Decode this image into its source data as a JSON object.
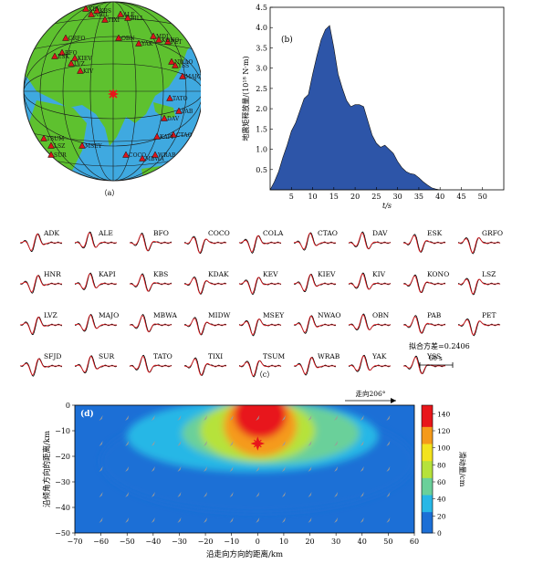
{
  "panel_a": {
    "label": "（a）",
    "stations": [
      "NRIL",
      "TIXI",
      "BILL",
      "YAK",
      "KBS",
      "ALE",
      "OBN",
      "GRFO",
      "BFO",
      "ESK",
      "KIEV",
      "KIV",
      "MDJ",
      "PET",
      "NWAO",
      "YSS",
      "TATO",
      "MAJO",
      "PAB",
      "KONO",
      "DAV",
      "CTAO",
      "KAPI",
      "TSUM",
      "LSZ",
      "MSEY",
      "COCO",
      "MBWA",
      "WRAB",
      "SUR",
      "LVZ",
      "KEV"
    ]
  },
  "panel_b": {
    "label": "(b)",
    "chart_data": {
      "type": "area",
      "xlabel": "t/s",
      "ylabel": "地震矩释放量/(10¹⁸ N·m)",
      "xlim": [
        0,
        55
      ],
      "ylim": [
        0,
        4.5
      ],
      "x_ticks": [
        5,
        10,
        15,
        20,
        25,
        30,
        35,
        40,
        45,
        50
      ],
      "y_ticks": [
        0.5,
        1.0,
        1.5,
        2.0,
        2.5,
        3.0,
        3.5,
        4.0,
        4.5
      ],
      "x_tick_labels": [
        "5",
        "10",
        "15",
        "20",
        "25",
        "30",
        "35",
        "40",
        "45",
        "50"
      ],
      "y_tick_labels": [
        "0.5",
        "1.0",
        "1.5",
        "2.0",
        "2.5",
        "3.0",
        "3.5",
        "4.0",
        "4.5"
      ],
      "color": "#2d55a8",
      "x": [
        0,
        1,
        2,
        3,
        4,
        5,
        6,
        7,
        8,
        9,
        10,
        11,
        12,
        13,
        14,
        15,
        16,
        17,
        18,
        19,
        20,
        21,
        22,
        23,
        24,
        25,
        26,
        27,
        28,
        29,
        30,
        31,
        32,
        33,
        34,
        35,
        36,
        37,
        38,
        39,
        40
      ],
      "y": [
        0,
        0.2,
        0.45,
        0.8,
        1.1,
        1.45,
        1.65,
        1.95,
        2.25,
        2.35,
        2.85,
        3.3,
        3.7,
        3.95,
        4.05,
        3.5,
        2.85,
        2.5,
        2.2,
        2.05,
        2.1,
        2.1,
        2.05,
        1.7,
        1.35,
        1.15,
        1.05,
        1.1,
        1.0,
        0.9,
        0.7,
        0.55,
        0.45,
        0.4,
        0.38,
        0.3,
        0.2,
        0.12,
        0.05,
        0.02,
        0
      ]
    }
  },
  "panel_c": {
    "label": "（c）",
    "stations": [
      "ADK",
      "ALE",
      "BFO",
      "COCO",
      "COLA",
      "CTAO",
      "DAV",
      "ESK",
      "GRFO",
      "HNR",
      "KAPI",
      "KBS",
      "KDAK",
      "KEV",
      "KIEV",
      "KIV",
      "KONO",
      "LSZ",
      "LVZ",
      "MAJO",
      "MBWA",
      "MIDW",
      "MSEY",
      "NWAO",
      "OBN",
      "PAB",
      "PET",
      "SFJD",
      "SUR",
      "TATO",
      "TIXI",
      "TSUM",
      "WRAB",
      "YAK",
      "YSS"
    ],
    "fit_text": "拟合方差=0.2406",
    "scale_text": "60 s"
  },
  "panel_d": {
    "label": "(d)",
    "chart_data": {
      "type": "heatmap",
      "xlabel": "沿走向方向的距离/km",
      "ylabel": "沿倾角方向的距离/km",
      "xlim": [
        -70,
        60
      ],
      "ylim": [
        -50,
        0
      ],
      "x_ticks": [
        -70,
        -60,
        -50,
        -40,
        -30,
        -20,
        -10,
        0,
        10,
        20,
        30,
        40,
        50,
        60
      ],
      "y_ticks": [
        0,
        -10,
        -20,
        -30,
        -40,
        -50
      ],
      "x_tick_labels": [
        "−70",
        "−60",
        "−50",
        "−40",
        "−30",
        "−20",
        "−10",
        "0",
        "10",
        "20",
        "30",
        "40",
        "50",
        "60"
      ],
      "y_tick_labels": [
        "0",
        "−10",
        "−20",
        "−30",
        "−40",
        "−50"
      ],
      "colorbar_label": "滑动量/cm",
      "colorbar_range": [
        0,
        150
      ],
      "colorbar_ticks": [
        0,
        20,
        40,
        60,
        80,
        100,
        120,
        140
      ],
      "colorbar_tick_labels": [
        "0",
        "20",
        "40",
        "60",
        "80",
        "100",
        "120",
        "140"
      ],
      "strike_label": "走向206°",
      "hypocenter": [
        0,
        -15
      ],
      "patches": [
        {
          "x": 1,
          "y": -4,
          "rx": 10,
          "ry": 9,
          "slip": 150
        },
        {
          "x": 1,
          "y": -8,
          "rx": 14,
          "ry": 12,
          "slip": 110
        },
        {
          "x": 0,
          "y": -10,
          "rx": 22,
          "ry": 12,
          "slip": 70
        },
        {
          "x": 5,
          "y": -11,
          "rx": 34,
          "ry": 12,
          "slip": 45
        },
        {
          "x": -2,
          "y": -12,
          "rx": 48,
          "ry": 14,
          "slip": 28
        },
        {
          "x": 0,
          "y": -22,
          "rx": 60,
          "ry": 20,
          "slip": 12
        }
      ]
    }
  }
}
